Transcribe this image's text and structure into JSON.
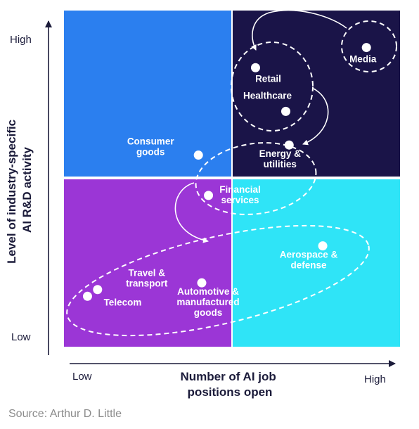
{
  "chart_data": {
    "type": "scatter",
    "title": "",
    "xlabel": "Number of AI job positions open",
    "ylabel": "Level of industry-specific AI R&D activity",
    "xlim": [
      0,
      100
    ],
    "ylim": [
      0,
      100
    ],
    "x_tick_labels": [
      "Low",
      "High"
    ],
    "y_tick_labels": [
      "Low",
      "High"
    ],
    "quadrant_colors": {
      "top_left": "#2b7fef",
      "top_right": "#1a1448",
      "bottom_left": "#9b36d6",
      "bottom_right": "#2fe4f7"
    },
    "points": [
      {
        "label": "Media",
        "x": 90,
        "y": 89
      },
      {
        "label": "Retail",
        "x": 57,
        "y": 83
      },
      {
        "label": "Healthcare",
        "x": 66,
        "y": 70
      },
      {
        "label": "Energy & utilities",
        "x": 67,
        "y": 60
      },
      {
        "label": "Consumer goods",
        "x": 40,
        "y": 57
      },
      {
        "label": "Financial services",
        "x": 43,
        "y": 45
      },
      {
        "label": "Aerospace & defense",
        "x": 77,
        "y": 30
      },
      {
        "label": "Automotive & manufactured goods",
        "x": 41,
        "y": 19
      },
      {
        "label": "Travel & transport",
        "x": 10,
        "y": 17
      },
      {
        "label": "Telecom",
        "x": 7,
        "y": 15
      }
    ]
  },
  "source": "Source: Arthur D. Little"
}
